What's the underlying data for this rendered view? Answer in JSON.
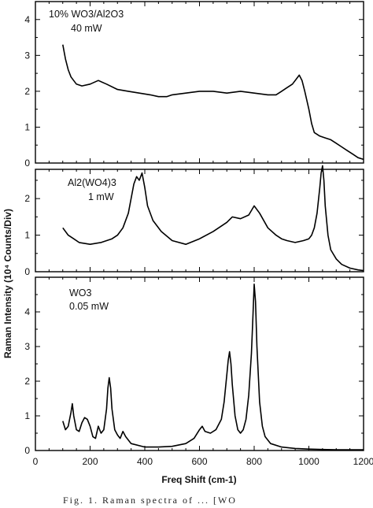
{
  "x_axis_title": "Freq Shift (cm-1)",
  "y_axis_title": "Raman Intensity (10⁴ Counts/Div)",
  "x_ticks": [
    "0",
    "200",
    "400",
    "600",
    "800",
    "1000",
    "1200"
  ],
  "panels": [
    {
      "label_line1": "10% WO3/Al2O3",
      "label_line2": "40 mW",
      "y_ticks": [
        "0",
        "1",
        "2",
        "3",
        "4"
      ]
    },
    {
      "label_line1": "Al2(WO4)3",
      "label_line2": "1 mW",
      "y_ticks": [
        "0",
        "1",
        "2"
      ]
    },
    {
      "label_line1": "WO3",
      "label_line2": "0.05 mW",
      "y_ticks": [
        "0",
        "1",
        "2",
        "3",
        "4"
      ]
    }
  ],
  "caption_fragment": "Fig. 1. Raman spectra of ... [WO",
  "chart_data": [
    {
      "type": "line",
      "title": "10% WO3/Al2O3 40 mW",
      "xlim": [
        0,
        1200
      ],
      "ylim": [
        0,
        4.5
      ],
      "series": [
        {
          "x": [
            100,
            110,
            120,
            130,
            150,
            170,
            200,
            230,
            260,
            300,
            340,
            380,
            420,
            450,
            480,
            500,
            550,
            600,
            650,
            700,
            750,
            800,
            850,
            880,
            900,
            920,
            940,
            955,
            965,
            975,
            985,
            1000,
            1010,
            1020,
            1040,
            1060,
            1080,
            1100,
            1120,
            1140,
            1160,
            1180,
            1200
          ],
          "y": [
            3.3,
            2.9,
            2.6,
            2.4,
            2.2,
            2.15,
            2.2,
            2.3,
            2.2,
            2.05,
            2.0,
            1.95,
            1.9,
            1.85,
            1.85,
            1.9,
            1.95,
            2.0,
            2.0,
            1.95,
            2.0,
            1.95,
            1.9,
            1.9,
            2.0,
            2.1,
            2.2,
            2.35,
            2.45,
            2.3,
            2.0,
            1.5,
            1.1,
            0.85,
            0.75,
            0.7,
            0.65,
            0.55,
            0.45,
            0.35,
            0.25,
            0.15,
            0.1
          ]
        }
      ]
    },
    {
      "type": "line",
      "title": "Al2(WO4)3 1 mW",
      "xlim": [
        0,
        1200
      ],
      "ylim": [
        0,
        2.8
      ],
      "series": [
        {
          "x": [
            100,
            120,
            140,
            160,
            200,
            240,
            280,
            300,
            320,
            340,
            350,
            360,
            370,
            380,
            390,
            400,
            410,
            430,
            460,
            500,
            550,
            600,
            650,
            700,
            720,
            750,
            780,
            800,
            820,
            850,
            880,
            900,
            920,
            950,
            980,
            1000,
            1010,
            1020,
            1030,
            1040,
            1045,
            1050,
            1055,
            1060,
            1070,
            1080,
            1100,
            1120,
            1150,
            1180,
            1200
          ],
          "y": [
            1.2,
            1.0,
            0.9,
            0.8,
            0.75,
            0.8,
            0.9,
            1.0,
            1.2,
            1.6,
            2.0,
            2.4,
            2.6,
            2.5,
            2.7,
            2.3,
            1.8,
            1.4,
            1.1,
            0.85,
            0.75,
            0.9,
            1.1,
            1.35,
            1.5,
            1.45,
            1.55,
            1.8,
            1.6,
            1.2,
            1.0,
            0.9,
            0.85,
            0.8,
            0.85,
            0.9,
            1.0,
            1.2,
            1.6,
            2.3,
            2.7,
            2.9,
            2.5,
            1.8,
            1.0,
            0.6,
            0.35,
            0.2,
            0.1,
            0.05,
            0.03
          ]
        }
      ]
    },
    {
      "type": "line",
      "title": "WO3 0.05 mW",
      "xlim": [
        0,
        1200
      ],
      "ylim": [
        0,
        5
      ],
      "series": [
        {
          "x": [
            100,
            110,
            120,
            130,
            135,
            140,
            150,
            160,
            170,
            180,
            190,
            200,
            210,
            220,
            230,
            240,
            250,
            260,
            265,
            270,
            275,
            280,
            290,
            300,
            310,
            320,
            330,
            350,
            400,
            450,
            500,
            550,
            580,
            600,
            610,
            620,
            640,
            660,
            680,
            690,
            700,
            705,
            710,
            715,
            720,
            730,
            740,
            750,
            760,
            770,
            780,
            790,
            795,
            800,
            805,
            810,
            820,
            830,
            840,
            860,
            900,
            950,
            1000,
            1050,
            1100,
            1150,
            1200
          ],
          "y": [
            0.85,
            0.6,
            0.7,
            1.1,
            1.35,
            1.0,
            0.6,
            0.55,
            0.8,
            0.95,
            0.9,
            0.7,
            0.4,
            0.35,
            0.7,
            0.5,
            0.6,
            1.2,
            1.8,
            2.1,
            1.8,
            1.2,
            0.6,
            0.45,
            0.35,
            0.55,
            0.4,
            0.2,
            0.1,
            0.1,
            0.12,
            0.2,
            0.35,
            0.6,
            0.7,
            0.55,
            0.5,
            0.6,
            0.9,
            1.4,
            2.2,
            2.6,
            2.85,
            2.5,
            1.9,
            1.0,
            0.6,
            0.5,
            0.6,
            0.9,
            1.6,
            2.8,
            3.8,
            4.8,
            4.3,
            3.0,
            1.4,
            0.7,
            0.4,
            0.2,
            0.1,
            0.06,
            0.04,
            0.03,
            0.02,
            0.02,
            0.02
          ]
        }
      ]
    }
  ]
}
